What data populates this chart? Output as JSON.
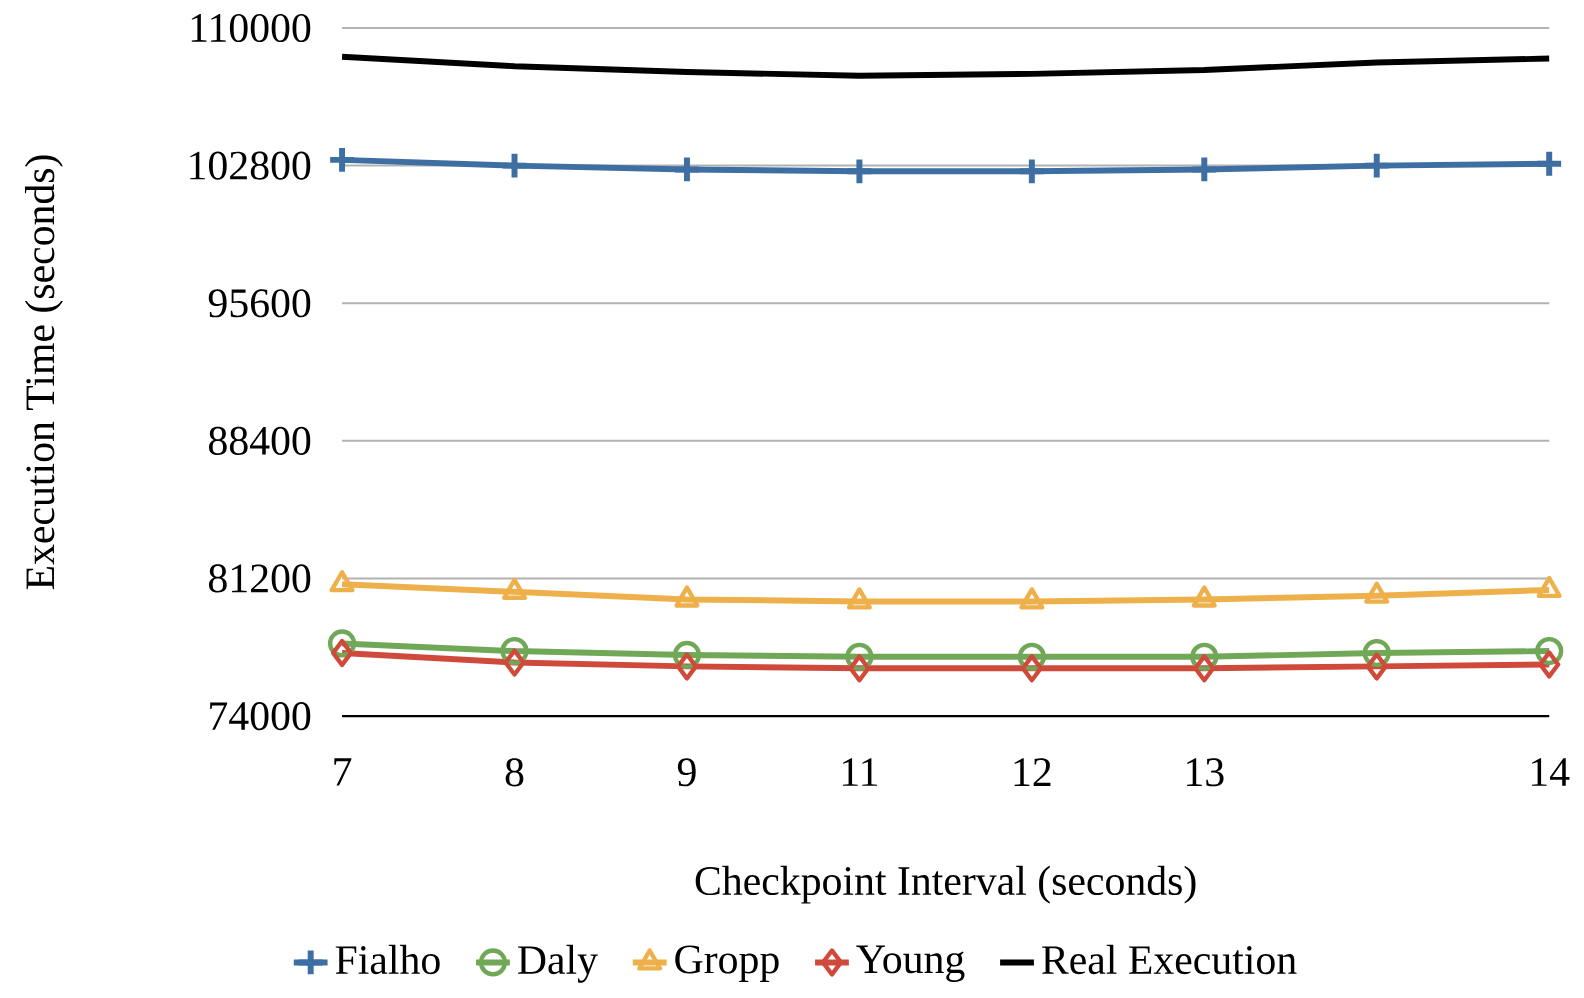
{
  "chart_data": {
    "type": "line",
    "xlabel": "Checkpoint Interval (seconds)",
    "ylabel": "Execution Time (seconds)",
    "categories": [
      "7",
      "8",
      "9",
      "11",
      "12",
      "13",
      null,
      "14"
    ],
    "ylim": [
      74000,
      110000
    ],
    "yticks": [
      74000,
      81200,
      88400,
      95600,
      102800,
      110000
    ],
    "grid": "y",
    "legend": "bottom",
    "series": [
      {
        "name": "Fialho",
        "color": "#3e6fa3",
        "marker": "cross",
        "values": [
          103100,
          102800,
          102600,
          102500,
          102500,
          102600,
          102800,
          102900
        ]
      },
      {
        "name": "Daly",
        "color": "#70a858",
        "marker": "circle",
        "values": [
          77800,
          77400,
          77200,
          77100,
          77100,
          77100,
          77300,
          77400
        ]
      },
      {
        "name": "Gropp",
        "color": "#eeb04a",
        "marker": "triangle",
        "values": [
          80900,
          80500,
          80100,
          80000,
          80000,
          80100,
          80300,
          80600
        ]
      },
      {
        "name": "Young",
        "color": "#d04a3c",
        "marker": "diamond",
        "values": [
          77300,
          76800,
          76600,
          76500,
          76500,
          76500,
          76600,
          76700
        ]
      },
      {
        "name": "Real Execution",
        "color": "#000000",
        "marker": "none",
        "values": [
          108500,
          108000,
          107700,
          107500,
          107600,
          107800,
          108200,
          108400
        ]
      }
    ]
  }
}
